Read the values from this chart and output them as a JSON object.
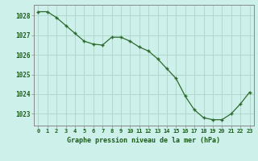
{
  "x": [
    0,
    1,
    2,
    3,
    4,
    5,
    6,
    7,
    8,
    9,
    10,
    11,
    12,
    13,
    14,
    15,
    16,
    17,
    18,
    19,
    20,
    21,
    22,
    23
  ],
  "y": [
    1028.2,
    1028.2,
    1027.9,
    1027.5,
    1027.1,
    1026.7,
    1026.55,
    1026.5,
    1026.9,
    1026.9,
    1026.7,
    1026.4,
    1026.2,
    1025.8,
    1025.3,
    1024.8,
    1023.9,
    1023.2,
    1022.8,
    1022.7,
    1022.7,
    1023.0,
    1023.5,
    1024.1
  ],
  "line_color": "#2d6a2d",
  "marker_color": "#2d6a2d",
  "bg_color": "#cef0ea",
  "grid_color_major": "#b0d8cc",
  "grid_color_minor": "#c8ece6",
  "axis_color": "#888888",
  "label_color": "#1a5c1a",
  "xlabel": "Graphe pression niveau de la mer (hPa)",
  "ylim": [
    1022.4,
    1028.55
  ],
  "yticks": [
    1023,
    1024,
    1025,
    1026,
    1027,
    1028
  ],
  "xticks": [
    0,
    1,
    2,
    3,
    4,
    5,
    6,
    7,
    8,
    9,
    10,
    11,
    12,
    13,
    14,
    15,
    16,
    17,
    18,
    19,
    20,
    21,
    22,
    23
  ],
  "xtick_labels": [
    "0",
    "1",
    "2",
    "3",
    "4",
    "5",
    "6",
    "7",
    "8",
    "9",
    "10",
    "11",
    "12",
    "13",
    "14",
    "15",
    "16",
    "17",
    "18",
    "19",
    "20",
    "21",
    "22",
    "23"
  ]
}
